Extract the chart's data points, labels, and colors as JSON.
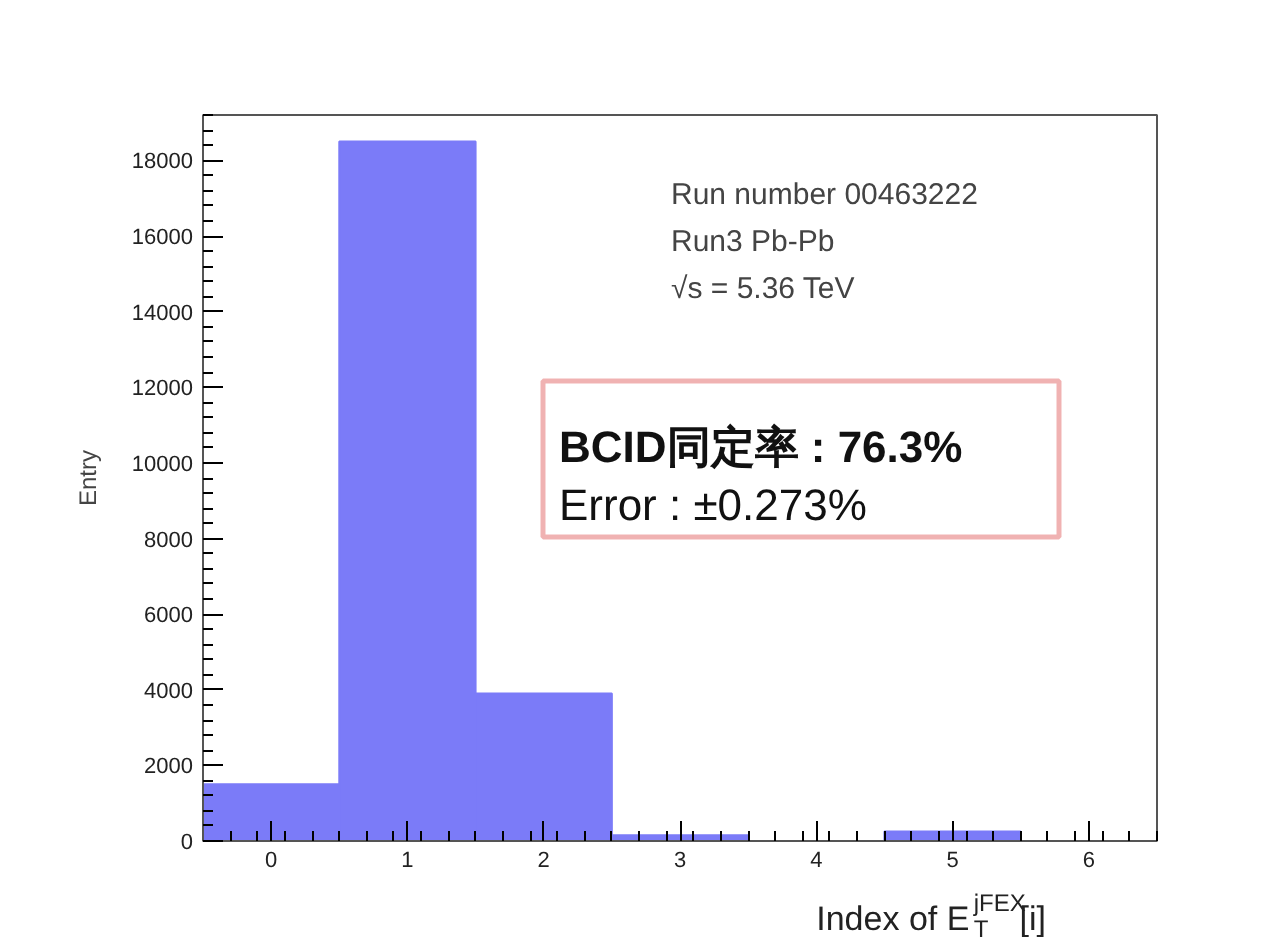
{
  "chart_data": {
    "type": "histogram",
    "bins": [
      -0.5,
      0.5,
      1.5,
      2.5,
      3.5,
      4.5,
      5.5,
      6.5
    ],
    "values": [
      1500,
      18500,
      3900,
      150,
      0,
      250,
      0
    ],
    "color": "#7b7bf8",
    "xlim": [
      -0.5,
      6.5
    ],
    "ylim": [
      0,
      19200
    ],
    "xticks": [
      0,
      1,
      2,
      3,
      4,
      5,
      6
    ],
    "yticks": [
      0,
      2000,
      4000,
      6000,
      8000,
      10000,
      12000,
      14000,
      16000,
      18000
    ],
    "xlabel": "Index of E$_{T}$$^{jFEX}$[i]",
    "ylabel": "Entry",
    "annotations": [
      "Run number 00463222",
      "Run3 Pb-Pb",
      "√s = 5.36 TeV",
      "BCID同定率 : 76.3%",
      "Error : ±0.273%"
    ],
    "grid": false
  }
}
